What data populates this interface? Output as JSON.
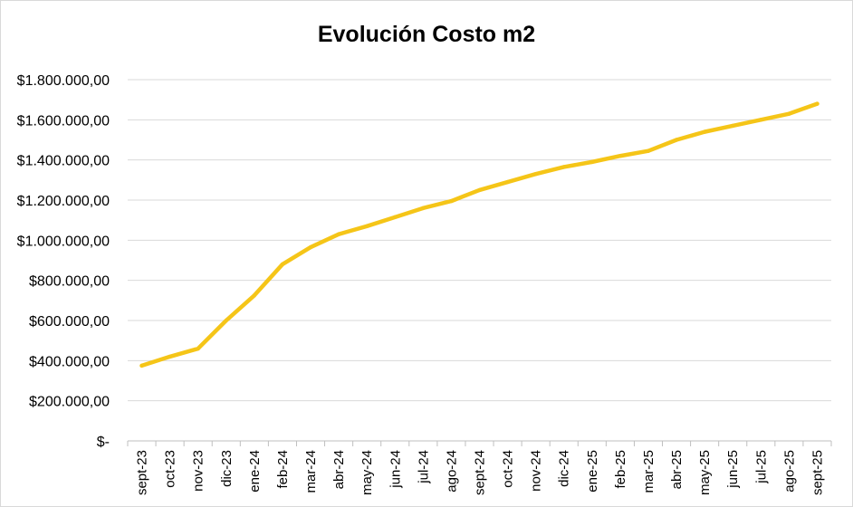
{
  "chart_data": {
    "type": "line",
    "title": "Evolución Costo m2",
    "xlabel": "",
    "ylabel": "",
    "categories": [
      "sept-23",
      "oct-23",
      "nov-23",
      "dic-23",
      "ene-24",
      "feb-24",
      "mar-24",
      "abr-24",
      "may-24",
      "jun-24",
      "jul-24",
      "ago-24",
      "sept-24",
      "oct-24",
      "nov-24",
      "dic-24",
      "ene-25",
      "feb-25",
      "mar-25",
      "abr-25",
      "may-25",
      "jun-25",
      "jul-25",
      "ago-25",
      "sept-25"
    ],
    "series": [
      {
        "values": [
          375000,
          420000,
          460000,
          600000,
          725000,
          880000,
          965000,
          1030000,
          1070000,
          1115000,
          1160000,
          1195000,
          1250000,
          1290000,
          1330000,
          1365000,
          1390000,
          1420000,
          1445000,
          1500000,
          1540000,
          1570000,
          1600000,
          1630000,
          1680000
        ],
        "color": "#f5c518"
      }
    ],
    "ylim": [
      0,
      1800000
    ],
    "yticks": [
      0,
      200000,
      400000,
      600000,
      800000,
      1000000,
      1200000,
      1400000,
      1600000,
      1800000
    ],
    "ytick_labels": [
      "$-",
      "$200.000,00",
      "$400.000,00",
      "$600.000,00",
      "$800.000,00",
      "$1.000.000,00",
      "$1.200.000,00",
      "$1.400.000,00",
      "$1.600.000,00",
      "$1.800.000,00"
    ],
    "grid": true,
    "legend": "none",
    "colors": {
      "gridline": "#d9d9d9",
      "axis": "#bfbfbf",
      "text": "#000000"
    }
  }
}
